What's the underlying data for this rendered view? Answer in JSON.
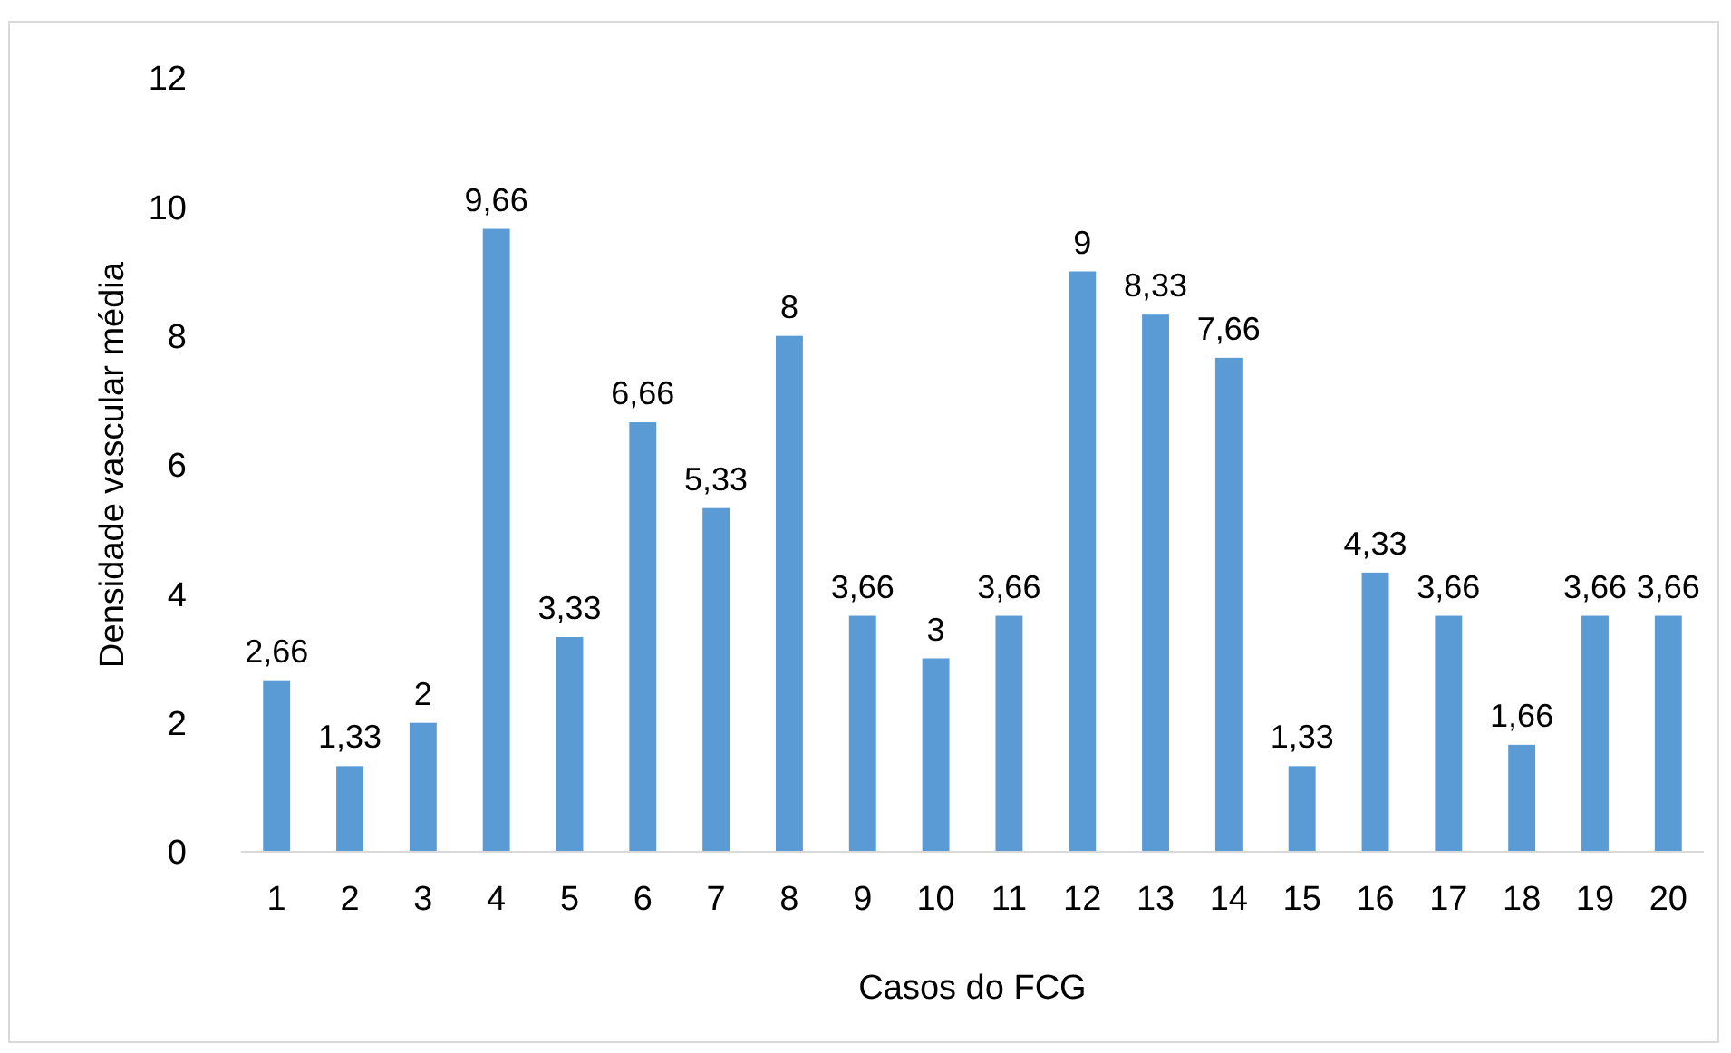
{
  "chart_data": {
    "type": "bar",
    "xlabel": "Casos do FCG",
    "ylabel": "Densidade vascular média",
    "categories": [
      "1",
      "2",
      "3",
      "4",
      "5",
      "6",
      "7",
      "8",
      "9",
      "10",
      "11",
      "12",
      "13",
      "14",
      "15",
      "16",
      "17",
      "18",
      "19",
      "20"
    ],
    "values": [
      2.66,
      1.33,
      2,
      9.66,
      3.33,
      6.66,
      5.33,
      8,
      3.66,
      3,
      3.66,
      9,
      8.33,
      7.66,
      1.33,
      4.33,
      3.66,
      1.66,
      3.66,
      3.66
    ],
    "value_labels": [
      "2,66",
      "1,33",
      "2",
      "9,66",
      "3,33",
      "6,66",
      "5,33",
      "8",
      "3,66",
      "3",
      "3,66",
      "9",
      "8,33",
      "7,66",
      "1,33",
      "4,33",
      "3,66",
      "1,66",
      "3,66",
      "3,66"
    ],
    "color": "#5b9bd5",
    "ylim": [
      0,
      12
    ],
    "yticks": [
      0,
      2,
      4,
      6,
      8,
      10,
      12
    ],
    "grid": false
  }
}
